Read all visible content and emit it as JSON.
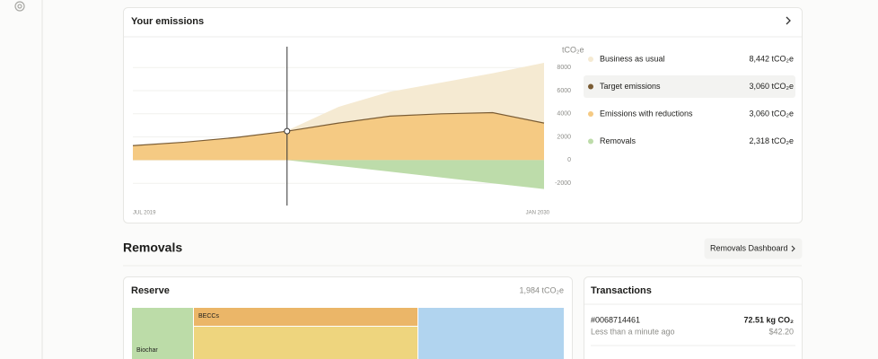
{
  "emissions": {
    "title": "Your emissions",
    "chart_data": {
      "type": "area",
      "y_label": "tCO₂e",
      "categories": [
        "JUL 2019",
        null,
        null,
        null,
        null,
        null,
        null,
        null,
        "JAN 2030"
      ],
      "ylim": [
        -4000,
        9800
      ],
      "yticks": [
        8000,
        6000,
        4000,
        2000,
        0,
        -2000
      ],
      "grid": true,
      "series": [
        {
          "name": "Business as usual",
          "total": "8,442 tCO₂e",
          "color": "#f5ead2",
          "values": [
            1250,
            1550,
            1950,
            2550,
            4600,
            5900,
            6700,
            7500,
            8400
          ]
        },
        {
          "name": "Target emissions",
          "total": "3,060 tCO₂e",
          "color": "#7a5c34",
          "values": [
            1250,
            1550,
            1950,
            2500,
            3200,
            3800,
            4000,
            4100,
            3200
          ]
        },
        {
          "name": "Emissions with reductions",
          "total": "3,060 tCO₂e",
          "color": "#f5ca83",
          "values": [
            1250,
            1550,
            1950,
            2500,
            3200,
            3800,
            4000,
            4100,
            3200
          ]
        },
        {
          "name": "Removals",
          "total": "2,318 tCO₂e",
          "color": "#bddcaa",
          "values": [
            null,
            null,
            null,
            0,
            -500,
            -1000,
            -1500,
            -2000,
            -2500
          ]
        }
      ]
    }
  },
  "removals": {
    "title": "Removals",
    "dashboard_button": "Removals Dashboard"
  },
  "reserve": {
    "title": "Reserve",
    "total": "1,984 tCO₂e",
    "blocks": [
      "Biochar",
      "BECCs"
    ]
  },
  "transactions": {
    "title": "Transactions",
    "items": [
      {
        "id": "#0068714461",
        "time": "Less than a minute ago",
        "amount": "72.51 kg CO₂",
        "price": "$42.20"
      }
    ]
  }
}
